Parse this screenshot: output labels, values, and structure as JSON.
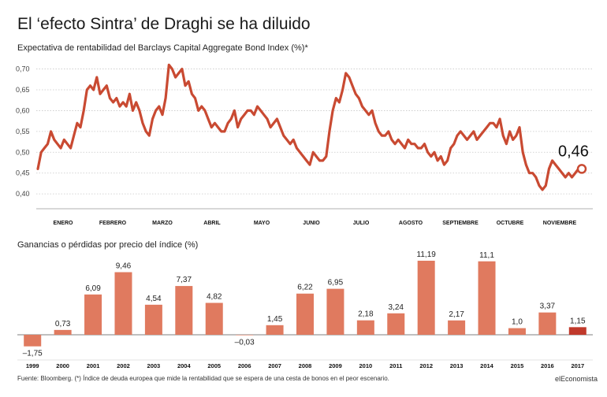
{
  "title": "El ‘efecto Sintra’ de Draghi se ha diluido",
  "subtitle": "Expectativa de rentabilidad del Barclays Capital Aggregate Bond Index (%)*",
  "footer": "Fuente: Bloomberg. (*) Índice de deuda europea que mide la rentabilidad que se espera de una cesta de bonos en el peor escenario.",
  "brand": "elEconomista",
  "colors": {
    "line": "#c94a32",
    "bar": "#e07a5f",
    "bar_highlight": "#c0392b",
    "grid": "#c8c8c8"
  },
  "chart_data": [
    {
      "type": "line",
      "title": "El ‘efecto Sintra’ de Draghi se ha diluido",
      "subtitle": "Expectativa de rentabilidad del Barclays Capital Aggregate Bond Index (%)*",
      "ylim": [
        0.37,
        0.72
      ],
      "yticks": [
        "0,40",
        "0,45",
        "0,50",
        "0,55",
        "0,60",
        "0,65",
        "0,70"
      ],
      "ytick_values": [
        0.4,
        0.45,
        0.5,
        0.55,
        0.6,
        0.65,
        0.7
      ],
      "month_labels": [
        "ENERO",
        "FEBRERO",
        "MARZO",
        "ABRIL",
        "MAYO",
        "JUNIO",
        "JULIO",
        "AGOSTO",
        "SEPTIEMBRE",
        "OCTUBRE",
        "NOVIEMBRE"
      ],
      "grid": true,
      "last_value_label": "0,46",
      "values": [
        0.46,
        0.5,
        0.51,
        0.52,
        0.55,
        0.53,
        0.52,
        0.51,
        0.53,
        0.52,
        0.51,
        0.54,
        0.57,
        0.56,
        0.6,
        0.65,
        0.66,
        0.65,
        0.68,
        0.64,
        0.65,
        0.66,
        0.63,
        0.62,
        0.63,
        0.61,
        0.62,
        0.61,
        0.64,
        0.6,
        0.62,
        0.6,
        0.57,
        0.55,
        0.54,
        0.58,
        0.6,
        0.61,
        0.59,
        0.63,
        0.71,
        0.7,
        0.68,
        0.69,
        0.7,
        0.66,
        0.67,
        0.64,
        0.63,
        0.6,
        0.61,
        0.6,
        0.58,
        0.56,
        0.57,
        0.56,
        0.55,
        0.55,
        0.57,
        0.58,
        0.6,
        0.56,
        0.58,
        0.59,
        0.6,
        0.6,
        0.59,
        0.61,
        0.6,
        0.59,
        0.58,
        0.56,
        0.57,
        0.58,
        0.56,
        0.54,
        0.53,
        0.52,
        0.53,
        0.51,
        0.5,
        0.49,
        0.48,
        0.47,
        0.5,
        0.49,
        0.48,
        0.48,
        0.49,
        0.55,
        0.6,
        0.63,
        0.62,
        0.65,
        0.69,
        0.68,
        0.66,
        0.64,
        0.63,
        0.61,
        0.6,
        0.59,
        0.6,
        0.57,
        0.55,
        0.54,
        0.54,
        0.55,
        0.53,
        0.52,
        0.53,
        0.52,
        0.51,
        0.53,
        0.52,
        0.52,
        0.51,
        0.51,
        0.52,
        0.5,
        0.49,
        0.5,
        0.48,
        0.49,
        0.47,
        0.48,
        0.51,
        0.52,
        0.54,
        0.55,
        0.54,
        0.53,
        0.54,
        0.55,
        0.53,
        0.54,
        0.55,
        0.56,
        0.57,
        0.57,
        0.56,
        0.58,
        0.54,
        0.52,
        0.55,
        0.53,
        0.54,
        0.56,
        0.5,
        0.47,
        0.45,
        0.45,
        0.44,
        0.42,
        0.41,
        0.42,
        0.46,
        0.48,
        0.47,
        0.46,
        0.45,
        0.44,
        0.45,
        0.44,
        0.45,
        0.46,
        0.46
      ]
    },
    {
      "type": "bar",
      "title": "Ganancias o pérdidas por precio del índice (%)",
      "categories": [
        "1999",
        "2000",
        "2001",
        "2002",
        "2003",
        "2004",
        "2005",
        "2006",
        "2007",
        "2008",
        "2009",
        "2010",
        "2011",
        "2012",
        "2013",
        "2014",
        "2015",
        "2016",
        "2017"
      ],
      "values": [
        -1.75,
        0.73,
        6.09,
        9.46,
        4.54,
        7.37,
        4.82,
        -0.03,
        1.45,
        6.22,
        6.95,
        2.18,
        3.24,
        11.19,
        2.17,
        11.1,
        1.0,
        3.37,
        1.15
      ],
      "value_labels": [
        "–1,75",
        "0,73",
        "6,09",
        "9,46",
        "4,54",
        "7,37",
        "4,82",
        "–0,03",
        "1,45",
        "6,22",
        "6,95",
        "2,18",
        "3,24",
        "11,19",
        "2,17",
        "11,1",
        "1,0",
        "3,37",
        "1,15"
      ],
      "highlight": "2017"
    }
  ]
}
